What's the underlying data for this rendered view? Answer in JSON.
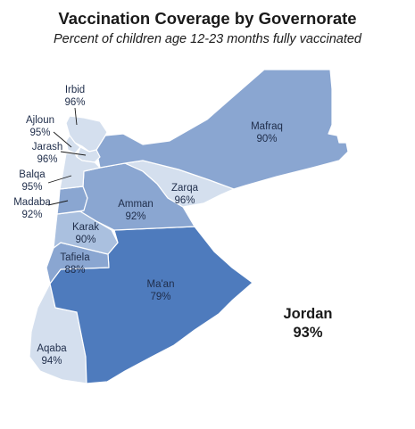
{
  "title": "Vaccination Coverage by Governorate",
  "subtitle": "Percent of children age 12-23  months fully vaccinated",
  "national": {
    "name": "Jordan",
    "value": "93%"
  },
  "colors": {
    "lightest": "#d4dfee",
    "light": "#aac0df",
    "medium": "#8aa6d1",
    "dark": "#4e7bbd",
    "label_text": "#1f2d4a",
    "border": "#ffffff"
  },
  "governorates": {
    "irbid": {
      "name": "Irbid",
      "value": "96%"
    },
    "ajloun": {
      "name": "Ajloun",
      "value": "95%"
    },
    "jarash": {
      "name": "Jarash",
      "value": "96%"
    },
    "balqa": {
      "name": "Balqa",
      "value": "95%"
    },
    "madaba": {
      "name": "Madaba",
      "value": "92%"
    },
    "mafraq": {
      "name": "Mafraq",
      "value": "90%"
    },
    "zarqa": {
      "name": "Zarqa",
      "value": "96%"
    },
    "amman": {
      "name": "Amman",
      "value": "92%"
    },
    "karak": {
      "name": "Karak",
      "value": "90%"
    },
    "tafiela": {
      "name": "Tafiela",
      "value": "88%"
    },
    "maan": {
      "name": "Ma'an",
      "value": "79%"
    },
    "aqaba": {
      "name": "Aqaba",
      "value": "94%"
    }
  }
}
